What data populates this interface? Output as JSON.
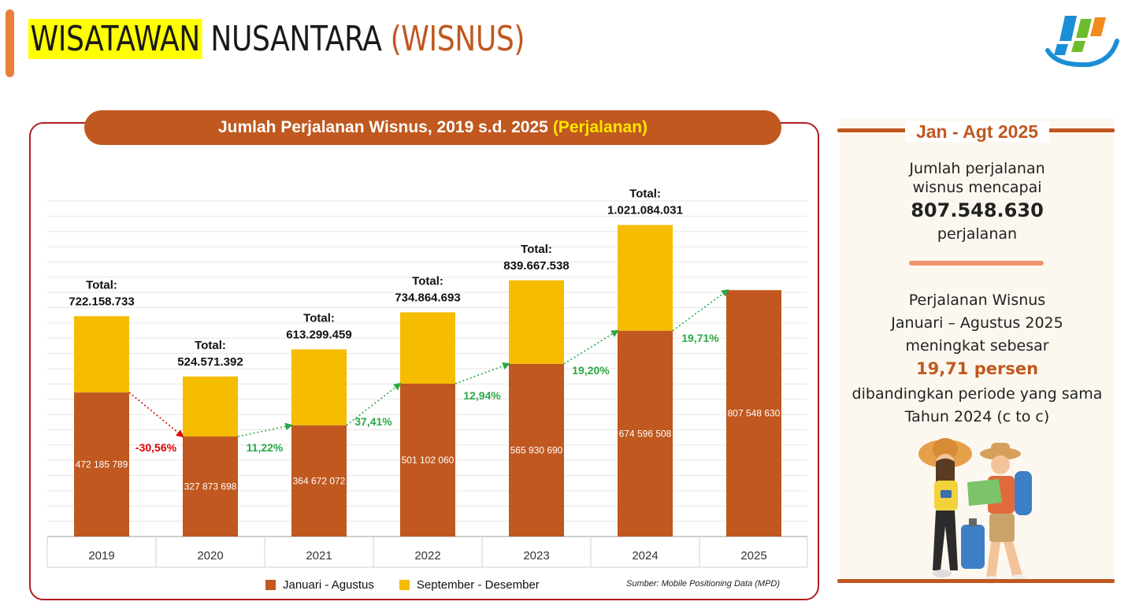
{
  "header": {
    "title_part1": "WISATAWAN",
    "title_part2": "NUSANTARA",
    "title_part3": "(WISNUS)"
  },
  "logo": {
    "icon": "bps-logo"
  },
  "chart": {
    "title_main": "Jumlah Perjalanan Wisnus, 2019 s.d. 2025",
    "title_unit": "(Perjalanan)",
    "source": "Sumber: Mobile Positioning Data (MPD)"
  },
  "chart_data": {
    "type": "bar",
    "stacked": true,
    "categories": [
      "2019",
      "2020",
      "2021",
      "2022",
      "2023",
      "2024",
      "2025"
    ],
    "series": [
      {
        "name": "Januari - Agustus",
        "color": "#c0581f",
        "values": [
          472185789,
          327873698,
          364672072,
          501102060,
          565930690,
          674596508,
          807548630
        ],
        "value_labels": [
          "472 185 789",
          "327 873 698",
          "364 672 072",
          "501 102 060",
          "565 930 690",
          "674 596 508",
          "807 548 630"
        ]
      },
      {
        "name": "September - Desember",
        "color": "#f5bc00",
        "values": [
          249972944,
          196697694,
          248627387,
          233762633,
          273736848,
          346487523,
          null
        ]
      }
    ],
    "totals": [
      722158733,
      524571392,
      613299459,
      734864693,
      839667538,
      1021084031,
      null
    ],
    "total_prefix": "Total:",
    "total_labels": [
      "722.158.733",
      "524.571.392",
      "613.299.459",
      "734.864.693",
      "839.667.538",
      "1.021.084.031",
      ""
    ],
    "growth": [
      {
        "label": "-30,56%",
        "color": "#e00000"
      },
      {
        "label": "11,22%",
        "color": "#2aa845"
      },
      {
        "label": "37,41%",
        "color": "#2aa845"
      },
      {
        "label": "12,94%",
        "color": "#2aa845"
      },
      {
        "label": "19,20%",
        "color": "#2aa845"
      },
      {
        "label": "19,71%",
        "color": "#2aa845"
      }
    ],
    "ylim": [
      0,
      1100000000
    ],
    "grid": true,
    "legend": "bottom-center"
  },
  "side_panel": {
    "period": "Jan - Agt 2025",
    "line1": "Jumlah perjalanan",
    "line2": "wisnus mencapai",
    "value": "807.548.630",
    "unit": "perjalanan",
    "p1": "Perjalanan Wisnus",
    "p2": "Januari – Agustus 2025",
    "p3": "meningkat sebesar",
    "highlight": "19,71 persen",
    "p4": "dibandingkan periode yang sama",
    "p5": "Tahun 2024 (c to c)",
    "illustration": "travelers-illustration"
  },
  "colors": {
    "accent": "#c0581f",
    "yellow": "#f5bc00",
    "green": "#2aa845",
    "red": "#e00000"
  }
}
